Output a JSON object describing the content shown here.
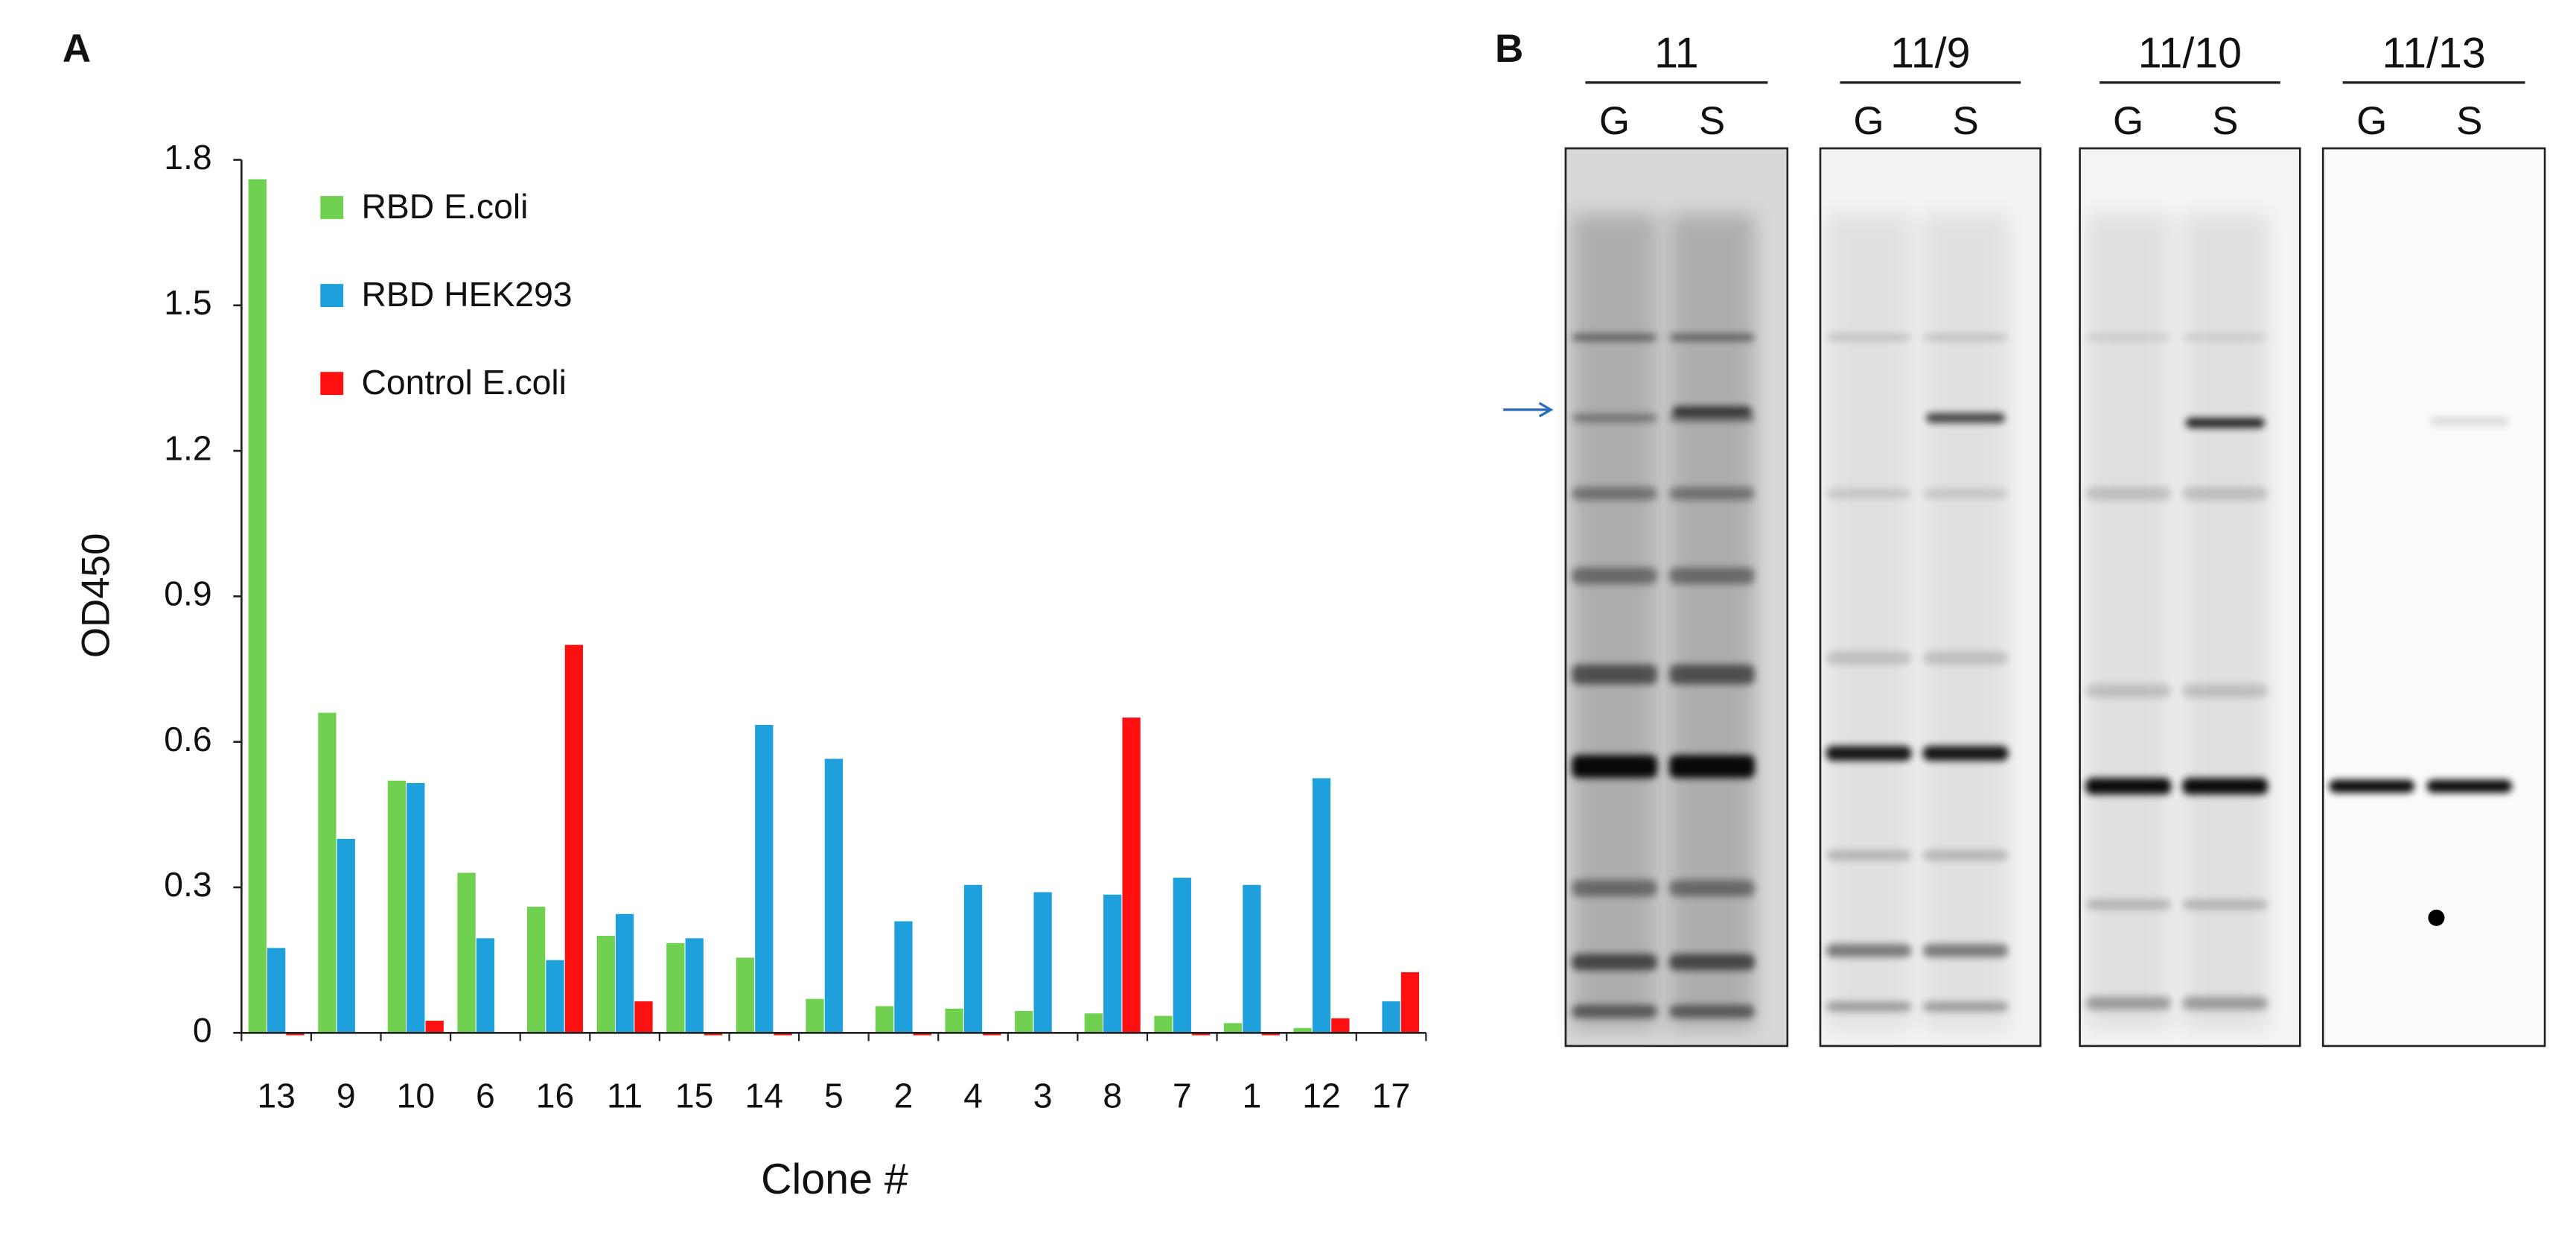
{
  "panel_labels": [
    "A",
    "B"
  ],
  "chart_data": {
    "type": "bar",
    "x_label": "Clone #",
    "y_label": "OD450",
    "categories": [
      "13",
      "9",
      "10",
      "6",
      "16",
      "11",
      "15",
      "14",
      "5",
      "2",
      "4",
      "3",
      "8",
      "7",
      "1",
      "12",
      "17"
    ],
    "series": [
      {
        "name": "RBD E.coli",
        "color": "#70d050",
        "values": [
          1.76,
          0.66,
          0.52,
          0.33,
          0.26,
          0.2,
          0.185,
          0.155,
          0.07,
          0.055,
          0.05,
          0.045,
          0.04,
          0.035,
          0.02,
          0.01,
          0.0
        ]
      },
      {
        "name": "RBD HEK293",
        "color": "#1ea0dc",
        "values": [
          0.175,
          0.4,
          0.515,
          0.195,
          0.15,
          0.245,
          0.195,
          0.635,
          0.565,
          0.23,
          0.305,
          0.29,
          0.285,
          0.32,
          0.305,
          0.525,
          0.065
        ]
      },
      {
        "name": "Control E.coli",
        "color": "#ff1010",
        "values": [
          -0.005,
          0,
          0.025,
          0,
          0.8,
          0.065,
          -0.005,
          -0.005,
          0,
          -0.005,
          -0.005,
          0,
          0.65,
          -0.005,
          -0.005,
          0.03,
          0.125
        ]
      }
    ],
    "ylim": [
      0,
      1.8
    ],
    "yticks": [
      0,
      {
        "value": 0.3,
        "label": "0.3"
      },
      {
        "value": 0.6,
        "label": "0.6"
      },
      {
        "value": 0.9,
        "label": "0.9"
      },
      {
        "value": 1.2,
        "label": "1.2"
      },
      {
        "value": 1.5,
        "label": "1.5"
      },
      {
        "value": 1.8,
        "label": "1.8"
      }
    ],
    "legend": "upper left"
  },
  "blot": {
    "panels": [
      {
        "label": "11",
        "lanes": [
          "G",
          "S"
        ]
      },
      {
        "label": "11/9",
        "lanes": [
          "G",
          "S"
        ]
      },
      {
        "label": "11/10",
        "lanes": [
          "G",
          "S"
        ]
      },
      {
        "label": "11/13",
        "lanes": [
          "G",
          "S"
        ]
      }
    ]
  }
}
